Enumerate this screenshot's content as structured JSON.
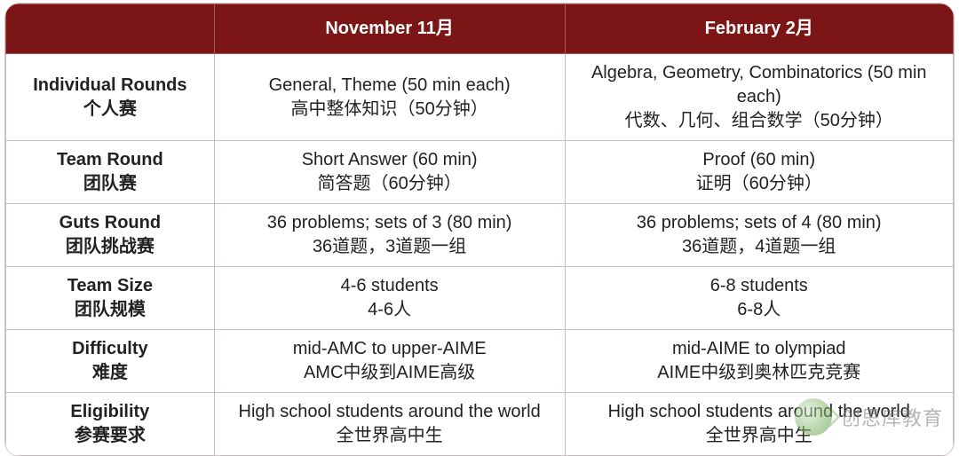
{
  "colors": {
    "header_bg": "#7c1515",
    "header_text": "#ffffff",
    "border": "#c9bcbc",
    "row_bg": "#ffffff",
    "text": "#222222"
  },
  "columns": [
    {
      "en": "",
      "zh": ""
    },
    {
      "en": "November",
      "zh": "11月"
    },
    {
      "en": "February",
      "zh": "2月"
    }
  ],
  "rows": [
    {
      "label_en": "Individual Rounds",
      "label_zh": "个人赛",
      "col1_en": "General, Theme (50 min each)",
      "col1_zh": "高中整体知识（50分钟）",
      "col2_en": "Algebra, Geometry, Combinatorics (50 min each)",
      "col2_zh": "代数、几何、组合数学（50分钟）"
    },
    {
      "label_en": "Team Round",
      "label_zh": "团队赛",
      "col1_en": "Short Answer (60 min)",
      "col1_zh": "简答题（60分钟）",
      "col2_en": "Proof (60 min)",
      "col2_zh": "证明（60分钟）"
    },
    {
      "label_en": "Guts Round",
      "label_zh": "团队挑战赛",
      "col1_en": "36 problems; sets of 3 (80 min)",
      "col1_zh": "36道题，3道题一组",
      "col2_en": "36 problems; sets of 4 (80 min)",
      "col2_zh": "36道题，4道题一组"
    },
    {
      "label_en": "Team Size",
      "label_zh": "团队规模",
      "col1_en": "4-6 students",
      "col1_zh": "4-6人",
      "col2_en": "6-8 students",
      "col2_zh": "6-8人"
    },
    {
      "label_en": "Difficulty",
      "label_zh": "难度",
      "col1_en": "mid-AMC to upper-AIME",
      "col1_zh": "AMC中级到AIME高级",
      "col2_en": "mid-AIME to olympiad",
      "col2_zh": "AIME中级到奥林匹克竞赛"
    },
    {
      "label_en": "Eligibility",
      "label_zh": "参赛要求",
      "col1_en": "High school students around the world",
      "col1_zh": "全世界高中生",
      "col2_en": "High school students around the world",
      "col2_zh": "全世界高中生"
    }
  ],
  "watermark": {
    "text": "创思库教育",
    "icon": "wechat-logo"
  }
}
